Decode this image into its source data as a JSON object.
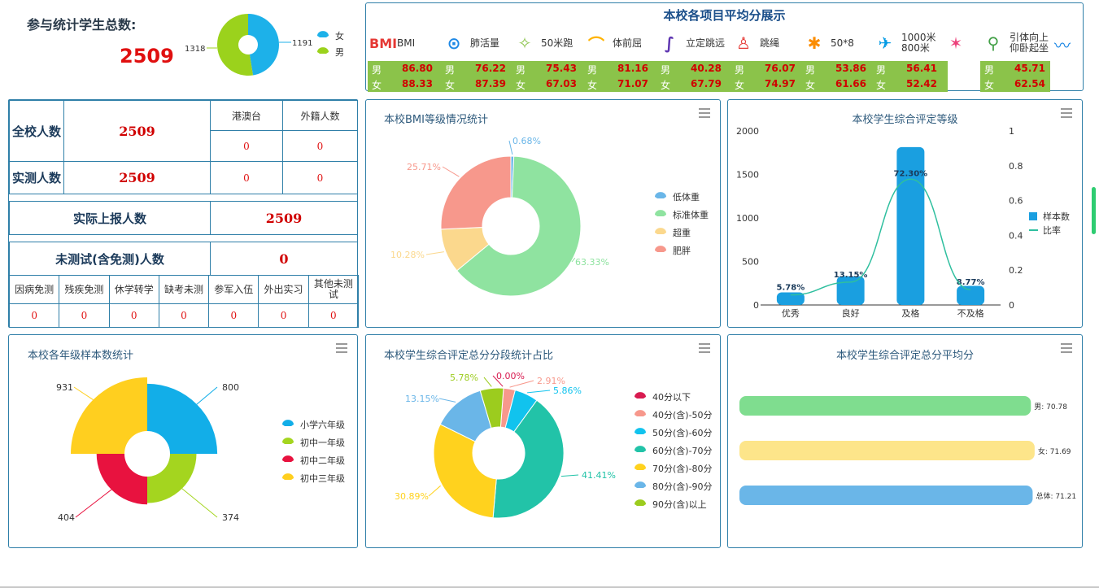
{
  "summary": {
    "label": "参与统计学生总数:",
    "total": "2509",
    "gender_chart": {
      "female": 1191,
      "male": 1318,
      "female_label": "1191",
      "male_label": "1318",
      "legend": [
        "女",
        "男"
      ],
      "colors": [
        "#1db1e9",
        "#9bd21c"
      ]
    }
  },
  "scores": {
    "title": "本校各项目平均分展示",
    "items": [
      {
        "label": "BMI",
        "icon": "bmi-text-icon",
        "male": "86.80",
        "female": "88.33"
      },
      {
        "label": "肺活量",
        "icon": "lungs-icon",
        "male": "76.22",
        "female": "87.39"
      },
      {
        "label": "50米跑",
        "icon": "runner-icon",
        "male": "75.43",
        "female": "67.03"
      },
      {
        "label": "体前屈",
        "icon": "sit-reach-icon",
        "male": "81.16",
        "female": "71.07"
      },
      {
        "label": "立定跳远",
        "icon": "long-jump-icon",
        "male": "40.28",
        "female": "67.79"
      },
      {
        "label": "跳绳",
        "icon": "jump-rope-icon",
        "male": "76.07",
        "female": "74.97"
      },
      {
        "label": "50*8",
        "icon": "shuttle-run-icon",
        "male": "53.86",
        "female": "61.66"
      },
      {
        "label": "1000米\n800米",
        "icon": "long-run-icon",
        "male": "56.41",
        "female": "52.42"
      },
      {
        "label": "",
        "icon": "dance-icon",
        "male": "",
        "female": ""
      },
      {
        "label": "引体向上\n仰卧起坐",
        "icon": "pullup-icon",
        "male": "45.71",
        "female": "62.54"
      }
    ],
    "extra_icon": "situp-icon",
    "gender_male": "男",
    "gender_female": "女"
  },
  "school_table": {
    "school_total_label": "全校人数",
    "school_total": "2509",
    "hk_label": "港澳台",
    "foreign_label": "外籍人数",
    "hk_value": "0",
    "foreign_value": "0",
    "tested_label": "实测人数",
    "tested": "2509",
    "tested_hk": "0",
    "tested_foreign": "0",
    "reported_label": "实际上报人数",
    "reported": "2509",
    "untested_label": "未测试(含免测)人数",
    "untested": "0",
    "reasons": [
      {
        "label": "因病免测",
        "value": "0"
      },
      {
        "label": "残疾免测",
        "value": "0"
      },
      {
        "label": "休学转学",
        "value": "0"
      },
      {
        "label": "缺考未测",
        "value": "0"
      },
      {
        "label": "参军入伍",
        "value": "0"
      },
      {
        "label": "外出实习",
        "value": "0"
      },
      {
        "label": "其他未测试",
        "value": "0"
      }
    ]
  },
  "bmi_panel": {
    "title": "本校BMI等级情况统计",
    "chart_data": {
      "type": "pie",
      "categories": [
        "低体重",
        "标准体重",
        "超重",
        "肥胖"
      ],
      "values": [
        0.68,
        63.33,
        10.28,
        25.71
      ],
      "labels": [
        "0.68%",
        "63.33%",
        "10.28%",
        "25.71%"
      ],
      "colors": [
        "#6ab6e8",
        "#8fe3a0",
        "#fbd88d",
        "#f7988c"
      ]
    }
  },
  "grade_panel": {
    "title": "本校学生综合评定等级",
    "chart_data": {
      "type": "bar",
      "categories": [
        "优秀",
        "良好",
        "及格",
        "不及格"
      ],
      "series": [
        {
          "name": "样本数",
          "values": [
            145,
            330,
            1814,
            220
          ]
        },
        {
          "name": "比率",
          "values": [
            0.0578,
            0.1315,
            0.723,
            0.0877
          ]
        }
      ],
      "rate_labels": [
        "5.78%",
        "13.15%",
        "72.30%",
        "8.77%"
      ],
      "ylim": [
        0,
        2000
      ],
      "yticks": [
        "0",
        "500",
        "1000",
        "1500",
        "2000"
      ],
      "y2ticks": [
        "0",
        "0.2",
        "0.4",
        "0.6",
        "0.8",
        "1"
      ],
      "colors": [
        "#1a9fe0",
        "#2fbf9f"
      ]
    }
  },
  "sample_panel": {
    "title": "本校各年级样本数统计",
    "chart_data": {
      "type": "pie",
      "categories": [
        "小学六年级",
        "初中一年级",
        "初中二年级",
        "初中三年级"
      ],
      "values": [
        800,
        374,
        404,
        931
      ],
      "labels": [
        "800",
        "374",
        "404",
        "931"
      ],
      "colors": [
        "#12aee8",
        "#a4d51f",
        "#e8123f",
        "#ffcf1f"
      ]
    }
  },
  "score_dist_panel": {
    "title": "本校学生综合评定总分分段统计占比",
    "chart_data": {
      "type": "pie",
      "categories": [
        "40分以下",
        "40分(含)-50分",
        "50分(含)-60分",
        "60分(含)-70分",
        "70分(含)-80分",
        "80分(含)-90分",
        "90分(含)以上"
      ],
      "values": [
        0.0,
        2.91,
        5.86,
        41.41,
        30.89,
        13.15,
        5.78
      ],
      "labels": [
        "0.00%",
        "2.91%",
        "5.86%",
        "41.41%",
        "30.89%",
        "13.15%",
        "5.78%"
      ],
      "colors": [
        "#d81b50",
        "#f7988c",
        "#11c3ee",
        "#22c3a8",
        "#ffd21e",
        "#6ab6e8",
        "#9ccc1e"
      ]
    }
  },
  "avg_panel": {
    "title": "本校学生综合评定总分平均分",
    "chart_data": {
      "type": "bar",
      "categories": [
        "男",
        "女",
        "总体"
      ],
      "values": [
        70.78,
        71.69,
        71.21
      ],
      "labels": [
        "男: 70.78",
        "女: 71.69",
        "总体: 71.21"
      ],
      "colors": [
        "#7fdd8f",
        "#fde58a",
        "#6ab6e8"
      ]
    }
  }
}
